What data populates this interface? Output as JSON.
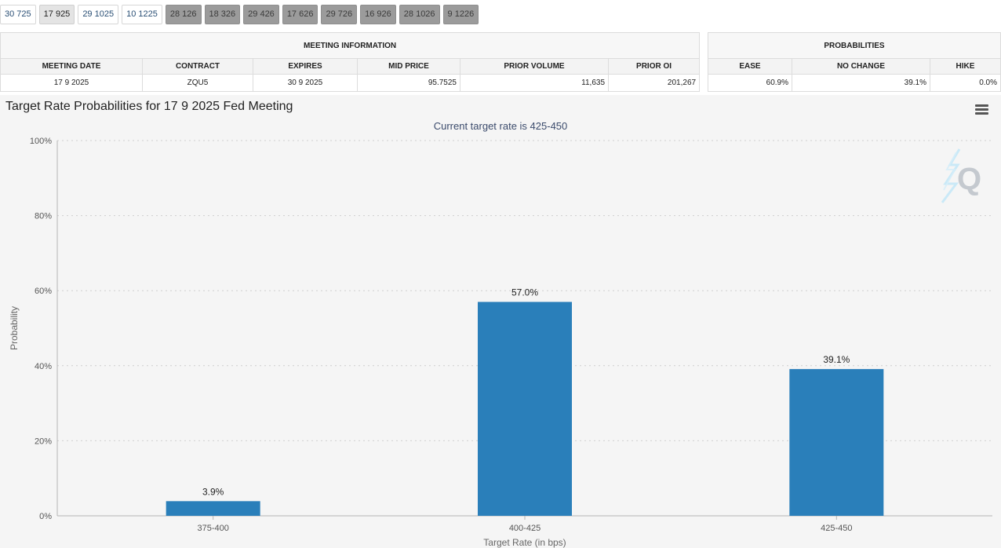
{
  "tabs": [
    {
      "label": "30 725",
      "state": "normal"
    },
    {
      "label": "17 925",
      "state": "selected"
    },
    {
      "label": "29 1025",
      "state": "normal"
    },
    {
      "label": "10 1225",
      "state": "normal"
    },
    {
      "label": "28 126",
      "state": "disabled"
    },
    {
      "label": "18 326",
      "state": "disabled"
    },
    {
      "label": "29 426",
      "state": "disabled"
    },
    {
      "label": "17 626",
      "state": "disabled"
    },
    {
      "label": "29 726",
      "state": "disabled"
    },
    {
      "label": "16 926",
      "state": "disabled"
    },
    {
      "label": "28 1026",
      "state": "disabled"
    },
    {
      "label": "9 1226",
      "state": "disabled"
    }
  ],
  "meeting_info": {
    "heading": "MEETING INFORMATION",
    "columns": [
      "MEETING DATE",
      "CONTRACT",
      "EXPIRES",
      "MID PRICE",
      "PRIOR VOLUME",
      "PRIOR OI"
    ],
    "row": [
      "17 9 2025",
      "ZQU5",
      "30 9 2025",
      "95.7525",
      "11,635",
      "201,267"
    ]
  },
  "probabilities": {
    "heading": "PROBABILITIES",
    "columns": [
      "EASE",
      "NO CHANGE",
      "HIKE"
    ],
    "row": [
      "60.9%",
      "39.1%",
      "0.0%"
    ]
  },
  "chart": {
    "title": "Target Rate Probabilities for 17 9 2025 Fed Meeting",
    "subtitle": "Current target rate is 425-450",
    "menu_icon": "hamburger-menu-icon",
    "watermark_icon": "q-logo-watermark-icon",
    "bar_color": "#2a7fba"
  },
  "chart_data": {
    "type": "bar",
    "categories": [
      "375-400",
      "400-425",
      "425-450"
    ],
    "values": [
      3.9,
      57.0,
      39.1
    ],
    "data_labels": [
      "3.9%",
      "57.0%",
      "39.1%"
    ],
    "xlabel": "Target Rate (in bps)",
    "ylabel": "Probability",
    "ylim": [
      0,
      100
    ],
    "yticks": [
      0,
      20,
      40,
      60,
      80,
      100
    ],
    "ytick_labels": [
      "0%",
      "20%",
      "40%",
      "60%",
      "80%",
      "100%"
    ],
    "grid": true
  }
}
